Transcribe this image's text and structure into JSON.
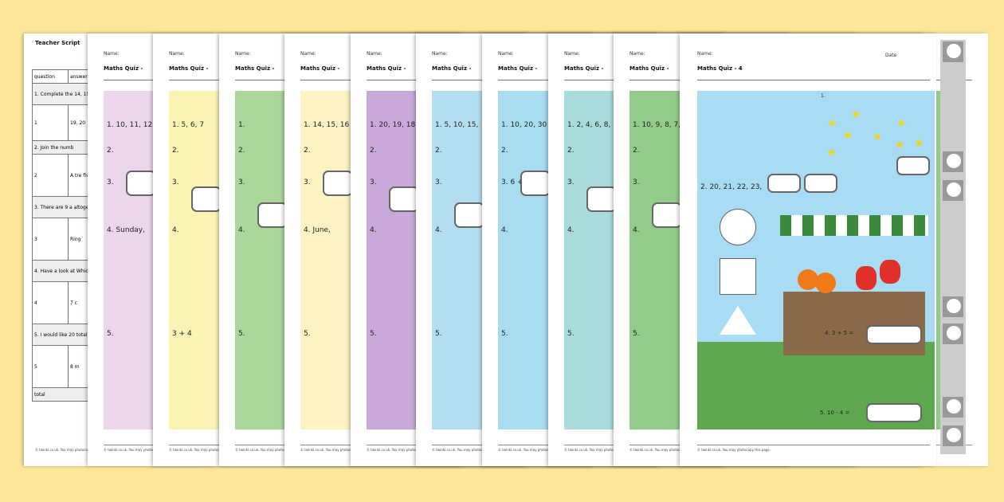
{
  "teacher_script": {
    "title": "Teacher Script",
    "headers": [
      "question",
      "answer"
    ],
    "rows": [
      [
        "1. Complete the 14, 15, 16, 17, 18,",
        ""
      ],
      [
        "1",
        "19, 20"
      ],
      [
        "2. Join the numb",
        ""
      ],
      [
        "2",
        "A tre five,"
      ],
      [
        "3. There are 9 a altogether?",
        ""
      ],
      [
        "3",
        "Ring"
      ],
      [
        "4. Have a look at Which month is",
        ""
      ],
      [
        "4",
        "7 c"
      ],
      [
        "5. I would like 20 total of 20?",
        ""
      ],
      [
        "5",
        "8 m"
      ],
      [
        "total",
        ""
      ]
    ]
  },
  "quizzes": [
    {
      "name_label": "Name:",
      "title": "Maths Quiz -",
      "color": "#ecd6ec",
      "items": [
        "1. 10, 11, 12,",
        "2.",
        "3.",
        "4. Sunday,",
        "5."
      ]
    },
    {
      "name_label": "Name:",
      "title": "Maths Quiz -",
      "color": "#faf4b4",
      "items": [
        "1.  5, 6, 7",
        "2.",
        "3.",
        "4.",
        "3 + 4"
      ]
    },
    {
      "name_label": "Name:",
      "title": "Maths Quiz -",
      "color": "#a9d89a",
      "items": [
        "1.",
        "2.",
        "3.",
        "4.",
        "5."
      ]
    },
    {
      "name_label": "Name:",
      "title": "Maths Quiz -",
      "color": "#fbf3c2",
      "items": [
        "1. 14, 15, 16",
        "2.",
        "3.",
        "4. June,",
        "5."
      ]
    },
    {
      "name_label": "Name:",
      "title": "Maths Quiz -",
      "color": "#c9a9d9",
      "items": [
        "1. 20, 19, 18",
        "2.",
        "3.",
        "4.",
        "5."
      ]
    },
    {
      "name_label": "Name:",
      "title": "Maths Quiz -",
      "color": "#b2def0",
      "items": [
        "1. 5, 10, 15,",
        "2.",
        "3.",
        "4.",
        "5."
      ]
    },
    {
      "name_label": "Name:",
      "title": "Maths Quiz -",
      "color": "#a8dcf0",
      "items": [
        "1. 10, 20, 30",
        "2.",
        "3. 6 + 6 =",
        "4.",
        "5."
      ]
    },
    {
      "name_label": "Name:",
      "title": "Maths Quiz -",
      "color": "#a8dcdc",
      "items": [
        "1. 2, 4, 6, 8,",
        "2.",
        "3.",
        "4.",
        "5."
      ]
    },
    {
      "name_label": "Name:",
      "title": "Maths Quiz -",
      "color": "#92cc88",
      "items": [
        "1. 10, 9, 8, 7,",
        "2.",
        "3.",
        "4.",
        "5."
      ]
    }
  ],
  "main_quiz": {
    "name_label": "Name:",
    "date_label": "Date",
    "title": "Maths Quiz - 4",
    "q1": "1.",
    "q2": "2.   20, 21, 22, 23,",
    "q4": "4.   3 + 5 =",
    "q5": "5.   10 - 4 =",
    "footer": "© twinkl.co.uk. You may photocopy this page."
  },
  "footer": "© twinkl.co.uk. You may photocopy this page."
}
